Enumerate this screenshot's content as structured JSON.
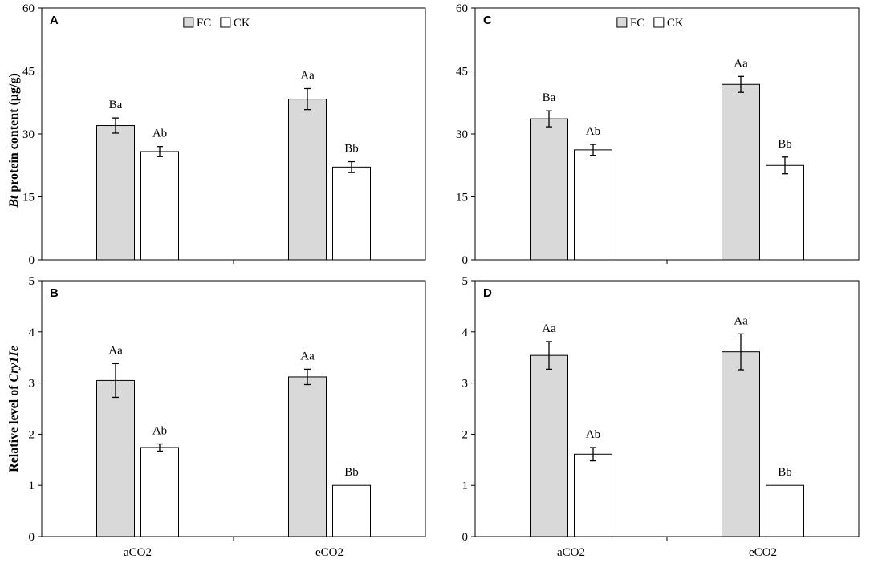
{
  "chart_data": [
    {
      "panel": "A",
      "type": "bar",
      "categories": [
        "aCO2",
        "eCO2"
      ],
      "series": [
        {
          "name": "FC",
          "values": [
            32,
            38.3
          ],
          "errors": [
            1.8,
            2.5
          ],
          "labels": [
            "Ba",
            "Aa"
          ],
          "color": "#d9d9d9"
        },
        {
          "name": "CK",
          "values": [
            25.8,
            22.1
          ],
          "errors": [
            1.2,
            1.3
          ],
          "labels": [
            "Ab",
            "Bb"
          ],
          "color": "#ffffff"
        }
      ],
      "ylim": [
        0,
        60
      ],
      "yticks": [
        "0",
        "15",
        "30",
        "45",
        "60"
      ],
      "legend": {
        "entries": [
          "FC",
          "CK"
        ],
        "position": "top-center"
      }
    },
    {
      "panel": "C",
      "type": "bar",
      "categories": [
        "aCO2",
        "eCO2"
      ],
      "series": [
        {
          "name": "FC",
          "values": [
            33.6,
            41.8
          ],
          "errors": [
            1.9,
            1.9
          ],
          "labels": [
            "Ba",
            "Aa"
          ],
          "color": "#d9d9d9"
        },
        {
          "name": "CK",
          "values": [
            26.2,
            22.5
          ],
          "errors": [
            1.3,
            2.0
          ],
          "labels": [
            "Ab",
            "Bb"
          ],
          "color": "#ffffff"
        }
      ],
      "ylim": [
        0,
        60
      ],
      "yticks": [
        "0",
        "15",
        "30",
        "45",
        "60"
      ],
      "legend": {
        "entries": [
          "FC",
          "CK"
        ],
        "position": "top-center"
      }
    },
    {
      "panel": "B",
      "type": "bar",
      "categories": [
        "aCO2",
        "eCO2"
      ],
      "series": [
        {
          "name": "FC",
          "values": [
            3.05,
            3.12
          ],
          "errors": [
            0.33,
            0.15
          ],
          "labels": [
            "Aa",
            "Aa"
          ],
          "color": "#d9d9d9"
        },
        {
          "name": "CK",
          "values": [
            1.74,
            1.0
          ],
          "errors": [
            0.07,
            0.0
          ],
          "labels": [
            "Ab",
            "Bb"
          ],
          "color": "#ffffff"
        }
      ],
      "ylim": [
        0,
        5
      ],
      "yticks": [
        "0",
        "1",
        "2",
        "3",
        "4",
        "5"
      ]
    },
    {
      "panel": "D",
      "type": "bar",
      "categories": [
        "aCO2",
        "eCO2"
      ],
      "series": [
        {
          "name": "FC",
          "values": [
            3.54,
            3.61
          ],
          "errors": [
            0.27,
            0.35
          ],
          "labels": [
            "Aa",
            "Aa"
          ],
          "color": "#d9d9d9"
        },
        {
          "name": "CK",
          "values": [
            1.61,
            1.0
          ],
          "errors": [
            0.13,
            0.0
          ],
          "labels": [
            "Ab",
            "Bb"
          ],
          "color": "#ffffff"
        }
      ],
      "ylim": [
        0,
        5
      ],
      "yticks": [
        "0",
        "1",
        "2",
        "3",
        "4",
        "5"
      ]
    }
  ],
  "ylabels": {
    "top": {
      "italic": "Bt",
      "rest": " protein content (µg/g)"
    },
    "bottom": {
      "rest": "Relative level of ",
      "italic": "Cry1Ie"
    }
  }
}
